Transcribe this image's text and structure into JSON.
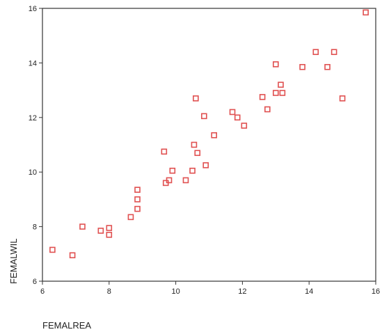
{
  "chart_data": {
    "type": "scatter",
    "title": "",
    "xlabel": "FEMALREA",
    "ylabel": "FEMALWIL",
    "xlim": [
      6,
      16
    ],
    "ylim": [
      6,
      16
    ],
    "xticks": [
      "6",
      "8",
      "10",
      "12",
      "14",
      "16"
    ],
    "yticks": [
      "6",
      "8",
      "10",
      "12",
      "14",
      "16"
    ],
    "grid": false,
    "marker_color": "#e05050",
    "points": [
      {
        "x": 6.3,
        "y": 7.15
      },
      {
        "x": 6.9,
        "y": 6.95
      },
      {
        "x": 7.2,
        "y": 8.0
      },
      {
        "x": 7.75,
        "y": 7.85
      },
      {
        "x": 8.0,
        "y": 7.95
      },
      {
        "x": 8.0,
        "y": 7.7
      },
      {
        "x": 8.65,
        "y": 8.35
      },
      {
        "x": 8.85,
        "y": 9.35
      },
      {
        "x": 8.85,
        "y": 9.0
      },
      {
        "x": 8.85,
        "y": 8.65
      },
      {
        "x": 9.65,
        "y": 10.75
      },
      {
        "x": 9.7,
        "y": 9.6
      },
      {
        "x": 9.8,
        "y": 9.7
      },
      {
        "x": 9.9,
        "y": 10.05
      },
      {
        "x": 10.3,
        "y": 9.7
      },
      {
        "x": 10.5,
        "y": 10.05
      },
      {
        "x": 10.55,
        "y": 11.0
      },
      {
        "x": 10.6,
        "y": 12.7
      },
      {
        "x": 10.65,
        "y": 10.7
      },
      {
        "x": 10.85,
        "y": 12.05
      },
      {
        "x": 10.9,
        "y": 10.25
      },
      {
        "x": 11.15,
        "y": 11.35
      },
      {
        "x": 11.7,
        "y": 12.2
      },
      {
        "x": 11.85,
        "y": 12.0
      },
      {
        "x": 12.05,
        "y": 11.7
      },
      {
        "x": 12.6,
        "y": 12.75
      },
      {
        "x": 12.75,
        "y": 12.3
      },
      {
        "x": 13.0,
        "y": 13.95
      },
      {
        "x": 13.0,
        "y": 12.9
      },
      {
        "x": 13.15,
        "y": 13.2
      },
      {
        "x": 13.2,
        "y": 12.9
      },
      {
        "x": 13.8,
        "y": 13.85
      },
      {
        "x": 14.2,
        "y": 14.4
      },
      {
        "x": 14.55,
        "y": 13.85
      },
      {
        "x": 14.75,
        "y": 14.4
      },
      {
        "x": 15.0,
        "y": 12.7
      },
      {
        "x": 15.7,
        "y": 15.85
      }
    ]
  }
}
